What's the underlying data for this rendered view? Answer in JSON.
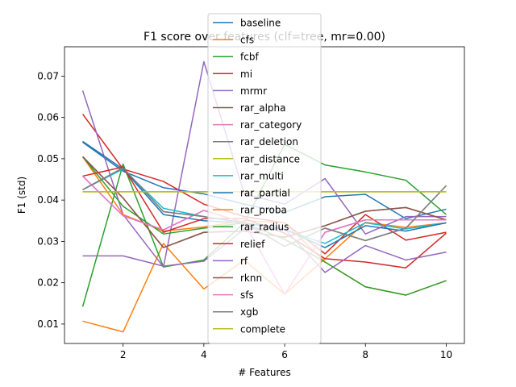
{
  "chart_data": {
    "type": "line",
    "title": "F1 score over features (clf=tree, mr=0.00)",
    "xlabel": "# Features",
    "ylabel": "F1 (std)",
    "xlim": [
      0.55,
      10.45
    ],
    "ylim": [
      0.0053,
      0.0771
    ],
    "x_ticks": [
      2,
      4,
      6,
      8,
      10
    ],
    "y_ticks": [
      0.01,
      0.02,
      0.03,
      0.04,
      0.05,
      0.06,
      0.07
    ],
    "y_tick_labels": [
      "0.01",
      "0.02",
      "0.03",
      "0.04",
      "0.05",
      "0.06",
      "0.07"
    ],
    "x": [
      1,
      2,
      3,
      4,
      5,
      6,
      7,
      8,
      9,
      10
    ],
    "grid": false,
    "legend_position": "top-center",
    "series": [
      {
        "name": "baseline",
        "color": "#1f77b4",
        "values": [
          0.054,
          0.047,
          0.043,
          0.0415,
          0.039,
          0.037,
          0.0408,
          0.0414,
          0.0355,
          0.0378
        ]
      },
      {
        "name": "cfs",
        "color": "#ff7f0e",
        "values": [
          0.0107,
          0.0081,
          0.0295,
          0.0185,
          0.0255,
          0.0172,
          0.0258,
          0.0346,
          0.0334,
          0.0345
        ]
      },
      {
        "name": "fcbf",
        "color": "#2ca02c",
        "values": [
          0.0142,
          0.0487,
          0.0238,
          0.0255,
          0.0345,
          0.0535,
          0.0485,
          0.0468,
          0.0448,
          0.0365
        ]
      },
      {
        "name": "mi",
        "color": "#d62728",
        "values": [
          0.0608,
          0.0475,
          0.0445,
          0.039,
          0.036,
          0.0345,
          0.027,
          0.0365,
          0.0303,
          0.0322
        ]
      },
      {
        "name": "mrmr",
        "color": "#9467bd",
        "values": [
          0.0665,
          0.0365,
          0.0238,
          0.0735,
          0.0415,
          0.039,
          0.0452,
          0.0318,
          0.036,
          0.036
        ]
      },
      {
        "name": "rar_alpha",
        "color": "#8c564b",
        "values": [
          0.0505,
          0.0405,
          0.0285,
          0.0322,
          0.0325,
          0.031,
          0.0338,
          0.0373,
          0.0382,
          0.0352
        ]
      },
      {
        "name": "rar_category",
        "color": "#e377c2",
        "values": [
          0.0458,
          0.0362,
          0.0328,
          0.0375,
          0.0345,
          0.0172,
          0.0322,
          0.0352,
          0.0352,
          0.0352
        ]
      },
      {
        "name": "rar_deletion",
        "color": "#7f7f7f",
        "values": [
          0.0425,
          0.0478,
          0.0372,
          0.036,
          0.0345,
          0.0288,
          0.0332,
          0.0302,
          0.0332,
          0.0435
        ]
      },
      {
        "name": "rar_distance",
        "color": "#bcbd22",
        "values": [
          0.042,
          0.042,
          0.042,
          0.042,
          0.042,
          0.042,
          0.042,
          0.042,
          0.042,
          0.042
        ]
      },
      {
        "name": "rar_multi",
        "color": "#17becf",
        "values": [
          0.0425,
          0.0475,
          0.038,
          0.036,
          0.0345,
          0.0328,
          0.0295,
          0.0345,
          0.033,
          0.0345
        ]
      },
      {
        "name": "rar_partial",
        "color": "#1f77b4",
        "values": [
          0.0542,
          0.0475,
          0.0365,
          0.035,
          0.0345,
          0.033,
          0.0285,
          0.0338,
          0.0325,
          0.0345
        ]
      },
      {
        "name": "rar_proba",
        "color": "#ff7f0e",
        "values": [
          0.0505,
          0.0365,
          0.0325,
          0.0335,
          0.035,
          0.0345,
          0.025,
          0.019,
          0.017,
          0.0205
        ]
      },
      {
        "name": "rar_radius",
        "color": "#2ca02c",
        "values": [
          0.0505,
          0.0385,
          0.0318,
          0.0332,
          0.0345,
          0.0305,
          0.025,
          0.019,
          0.017,
          0.0205
        ]
      },
      {
        "name": "relief",
        "color": "#d62728",
        "values": [
          0.0458,
          0.048,
          0.0322,
          0.0355,
          0.0355,
          0.032,
          0.0258,
          0.025,
          0.0236,
          0.032
        ]
      },
      {
        "name": "rf",
        "color": "#9467bd",
        "values": [
          0.0265,
          0.0265,
          0.024,
          0.0252,
          0.033,
          0.033,
          0.0225,
          0.029,
          0.0255,
          0.0274
        ]
      },
      {
        "name": "rknn",
        "color": "#8c564b",
        "values": [
          0.0505,
          0.0405,
          0.0285,
          0.0322,
          0.0325,
          0.031,
          0.0338,
          0.0373,
          0.0382,
          0.0352
        ]
      },
      {
        "name": "sfs",
        "color": "#e377c2",
        "values": [
          0.0458,
          0.0362,
          0.0328,
          0.0375,
          0.0345,
          0.0172,
          0.0322,
          0.0352,
          0.0352,
          0.0352
        ]
      },
      {
        "name": "xgb",
        "color": "#7f7f7f",
        "values": [
          0.0425,
          0.0478,
          0.0372,
          0.036,
          0.0345,
          0.0288,
          0.0332,
          0.0302,
          0.0332,
          0.0435
        ]
      },
      {
        "name": "complete",
        "color": "#bcbd22",
        "values": [
          0.042,
          0.042,
          0.042,
          0.042,
          0.042,
          0.042,
          0.042,
          0.042,
          0.042,
          0.042
        ]
      }
    ]
  }
}
